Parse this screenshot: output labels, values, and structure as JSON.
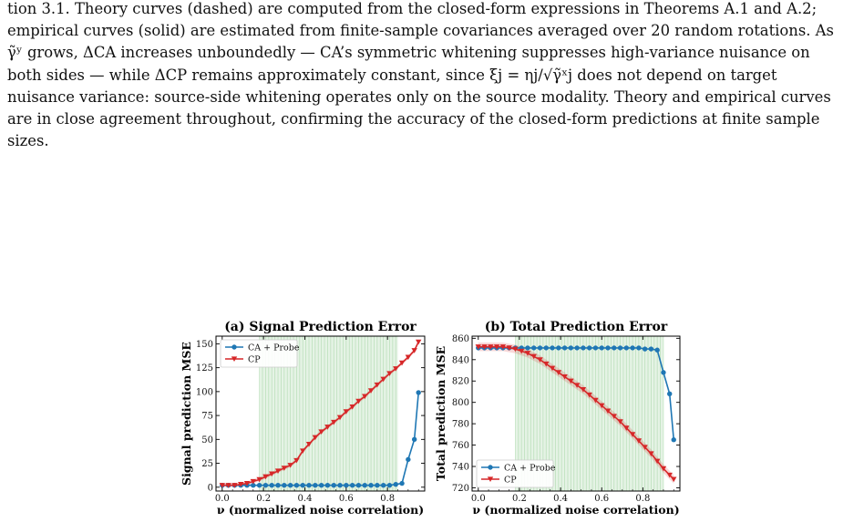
{
  "paragraph": {
    "line1": "tion 3.1. Theory curves (dashed) are computed from the closed-form expressions in Theorems A.1 and A.2;",
    "line2": "empirical curves (solid) are estimated from finite-sample covariances averaged over 20 random rotations. As",
    "line3": "γ̃ʸ grows, ΔCA increases unboundedly — CA’s symmetric whitening suppresses high-variance nuisance on",
    "line4": "both sides — while ΔCP remains approximately constant, since ξj = ηj/√γ̃ˣj does not depend on target",
    "line5": "nuisance variance: source-side whitening operates only on the source modality. Theory and empirical curves",
    "line6": "are in close agreement throughout, confirming the accuracy of the closed-form predictions at finite sample",
    "line7": "sizes."
  },
  "colors": {
    "ca": "#1f77b4",
    "cp": "#d62728",
    "band": "#2ca02c"
  },
  "chart_data": [
    {
      "type": "line",
      "title": "(a) Signal Prediction Error",
      "xlabel": "ν (normalized noise correlation)",
      "ylabel": "Signal prediction MSE",
      "xlim": [
        -0.03,
        0.98
      ],
      "ylim": [
        -4,
        158
      ],
      "xticks": [
        0.0,
        0.2,
        0.4,
        0.6,
        0.8
      ],
      "xtick_labels": [
        "0.0",
        "0.2",
        "0.4",
        "0.6",
        "0.8"
      ],
      "yticks": [
        0,
        25,
        50,
        75,
        100,
        125,
        150
      ],
      "ytick_labels": [
        "0",
        "25",
        "50",
        "75",
        "100",
        "125",
        "150"
      ],
      "shaded_x": [
        0.18,
        0.85
      ],
      "legend_position": "upper left",
      "x": [
        0.0,
        0.03,
        0.06,
        0.09,
        0.12,
        0.15,
        0.18,
        0.21,
        0.24,
        0.27,
        0.3,
        0.33,
        0.36,
        0.39,
        0.42,
        0.45,
        0.48,
        0.51,
        0.54,
        0.57,
        0.6,
        0.63,
        0.66,
        0.69,
        0.72,
        0.75,
        0.78,
        0.81,
        0.84,
        0.87,
        0.9,
        0.93,
        0.95
      ],
      "series": [
        {
          "name": "CA + Probe",
          "marker": "circle",
          "values": [
            2,
            2,
            2,
            2,
            2,
            2,
            2,
            2,
            2,
            2,
            2,
            2,
            2,
            2,
            2,
            2,
            2,
            2,
            2,
            2,
            2,
            2,
            2,
            2,
            2,
            2,
            2,
            2,
            3,
            4,
            29,
            50,
            99
          ]
        },
        {
          "name": "CP",
          "marker": "triangle-down",
          "values": [
            2,
            2,
            2,
            3,
            4,
            6,
            8,
            11,
            14,
            17,
            20,
            23,
            28,
            38,
            45,
            52,
            58,
            63,
            68,
            73,
            79,
            84,
            90,
            95,
            101,
            107,
            113,
            119,
            124,
            130,
            136,
            143,
            152
          ]
        }
      ]
    },
    {
      "type": "line",
      "title": "(b) Total Prediction Error",
      "xlabel": "ν (normalized noise correlation)",
      "ylabel": "Total prediction MSE",
      "xlim": [
        -0.03,
        0.98
      ],
      "ylim": [
        717,
        862
      ],
      "xticks": [
        0.0,
        0.2,
        0.4,
        0.6,
        0.8
      ],
      "xtick_labels": [
        "0.0",
        "0.2",
        "0.4",
        "0.6",
        "0.8"
      ],
      "yticks": [
        720,
        740,
        760,
        780,
        800,
        820,
        840,
        860
      ],
      "ytick_labels": [
        "720",
        "740",
        "760",
        "780",
        "800",
        "820",
        "840",
        "860"
      ],
      "shaded_x": [
        0.18,
        0.9
      ],
      "legend_position": "lower left",
      "x": [
        0.0,
        0.03,
        0.06,
        0.09,
        0.12,
        0.15,
        0.18,
        0.21,
        0.24,
        0.27,
        0.3,
        0.33,
        0.36,
        0.39,
        0.42,
        0.45,
        0.48,
        0.51,
        0.54,
        0.57,
        0.6,
        0.63,
        0.66,
        0.69,
        0.72,
        0.75,
        0.78,
        0.81,
        0.84,
        0.87,
        0.9,
        0.93,
        0.95
      ],
      "series": [
        {
          "name": "CA + Probe",
          "marker": "circle",
          "values": [
            851,
            851,
            851,
            851,
            851,
            851,
            851,
            851,
            851,
            851,
            851,
            851,
            851,
            851,
            851,
            851,
            851,
            851,
            851,
            851,
            851,
            851,
            851,
            851,
            851,
            851,
            851,
            850,
            850,
            849,
            828,
            808,
            765
          ]
        },
        {
          "name": "CP",
          "marker": "triangle-down",
          "values": [
            852,
            852,
            852,
            852,
            852,
            851,
            850,
            848,
            846,
            843,
            840,
            836,
            832,
            828,
            824,
            820,
            816,
            812,
            807,
            802,
            797,
            792,
            787,
            782,
            776,
            770,
            764,
            758,
            752,
            745,
            738,
            732,
            728
          ]
        }
      ]
    }
  ]
}
